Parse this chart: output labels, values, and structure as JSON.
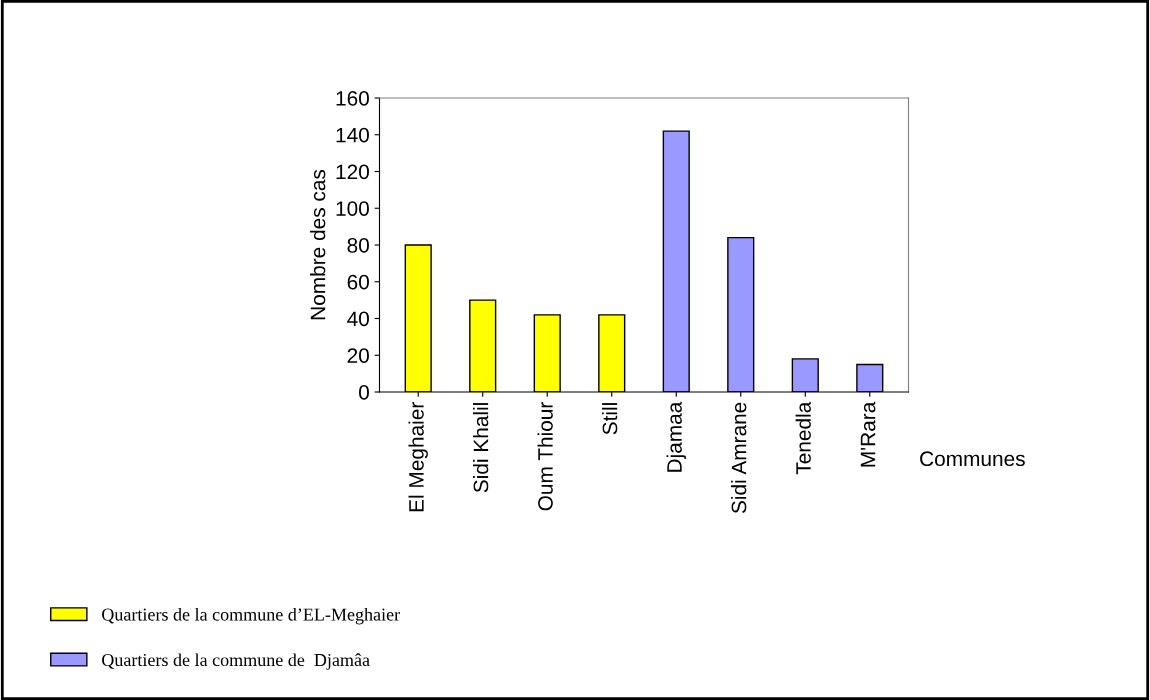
{
  "chart_data": {
    "type": "bar",
    "ylabel": "Nombre des cas",
    "xlabel": "Communes",
    "categories": [
      "El Meghaier",
      "Sidi Khalil",
      "Oum Thiour",
      "Still",
      "Djamaa",
      "Sidi Amrane",
      "Tenedla",
      "M'Rara"
    ],
    "series": [
      {
        "name": "Quartiers de la commune d’EL-Meghaier",
        "color": "#ffff00",
        "values": [
          80,
          50,
          42,
          42,
          null,
          null,
          null,
          null
        ]
      },
      {
        "name": "Quartiers de la commune de  Djamâa",
        "color": "#9999ff",
        "values": [
          null,
          null,
          null,
          null,
          142,
          84,
          18,
          15
        ]
      }
    ],
    "ylim": [
      0,
      160
    ],
    "yticks": [
      0,
      20,
      40,
      60,
      80,
      100,
      120,
      140,
      160
    ],
    "grid": false,
    "legend": "bottom left"
  }
}
